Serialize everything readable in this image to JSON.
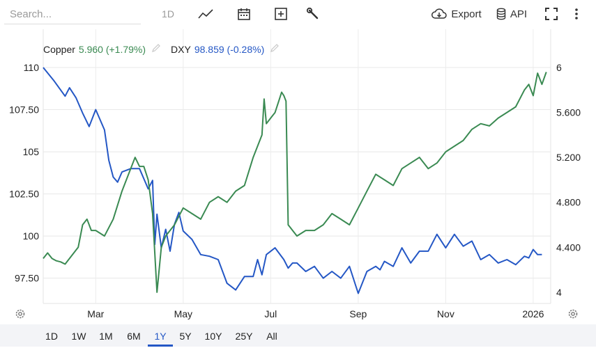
{
  "toolbar": {
    "search_placeholder": "Search...",
    "interval_label": "1D",
    "export_label": "Export",
    "api_label": "API",
    "icons": [
      "line-chart-icon",
      "calendar-icon",
      "plus-box-icon",
      "wrench-icon",
      "cloud-download-icon",
      "database-icon",
      "fullscreen-icon",
      "more-vertical-icon"
    ]
  },
  "legend": {
    "copper_name": "Copper",
    "copper_value": "5.960 (+1.79%)",
    "dxy_name": "DXY",
    "dxy_value": "98.859 (-0.28%)"
  },
  "range_buttons": [
    "1D",
    "1W",
    "1M",
    "6M",
    "1Y",
    "5Y",
    "10Y",
    "25Y",
    "All"
  ],
  "active_range": "1Y",
  "colors": {
    "copper": "#3a8a52",
    "dxy": "#2457c5",
    "active": "#2457c5"
  },
  "chart_data": {
    "type": "line",
    "x_tick_labels": [
      "Mar",
      "May",
      "Jul",
      "Sep",
      "Nov",
      "2026"
    ],
    "x_tick_positions": [
      1.2,
      3.2,
      5.2,
      7.2,
      9.2,
      11.2
    ],
    "xlim": [
      0,
      11.6
    ],
    "grid": true,
    "left_axis": {
      "ticks": [
        "110",
        "107.50",
        "105",
        "102.50",
        "100",
        "97.50"
      ],
      "ylim": [
        96,
        110
      ]
    },
    "right_axis": {
      "ticks": [
        "6",
        "5.600",
        "5.200",
        "4.800",
        "4.400",
        "4"
      ],
      "ylim": [
        3.9,
        6
      ]
    },
    "series": [
      {
        "name": "DXY",
        "axis": "left",
        "x": [
          0,
          0.25,
          0.5,
          0.6,
          0.75,
          0.9,
          1.05,
          1.2,
          1.4,
          1.5,
          1.6,
          1.7,
          1.8,
          2.0,
          2.2,
          2.4,
          2.5,
          2.55,
          2.6,
          2.7,
          2.8,
          2.9,
          3.0,
          3.1,
          3.2,
          3.4,
          3.6,
          3.8,
          4.0,
          4.2,
          4.4,
          4.6,
          4.8,
          4.9,
          5.0,
          5.1,
          5.3,
          5.5,
          5.6,
          5.7,
          5.8,
          6.0,
          6.2,
          6.4,
          6.6,
          6.8,
          7.0,
          7.2,
          7.4,
          7.6,
          7.7,
          7.8,
          8.0,
          8.2,
          8.4,
          8.6,
          8.8,
          9.0,
          9.2,
          9.4,
          9.6,
          9.8,
          10.0,
          10.2,
          10.4,
          10.6,
          10.8,
          11.0,
          11.1,
          11.2,
          11.3,
          11.4
        ],
        "values": [
          110,
          109.2,
          108.3,
          108.8,
          108.2,
          107.3,
          106.5,
          107.5,
          106.3,
          104.5,
          103.5,
          103.2,
          103.8,
          104,
          104,
          102.8,
          103.3,
          99.5,
          101.3,
          99.3,
          100.4,
          99.1,
          100.7,
          101.4,
          100.3,
          99.8,
          98.9,
          98.8,
          98.6,
          97.2,
          96.8,
          97.6,
          97.6,
          98.6,
          97.7,
          98.9,
          99.3,
          98.6,
          98.1,
          98.4,
          98.4,
          97.9,
          98.2,
          97.5,
          97.9,
          97.5,
          98.2,
          96.6,
          97.9,
          98.2,
          98.0,
          98.5,
          98.2,
          99.3,
          98.4,
          99.1,
          99.1,
          100.1,
          99.3,
          100.1,
          99.4,
          99.7,
          98.6,
          98.9,
          98.4,
          98.6,
          98.3,
          98.8,
          98.7,
          99.2,
          98.9,
          98.9
        ]
      },
      {
        "name": "Copper",
        "axis": "right",
        "x": [
          0,
          0.1,
          0.2,
          0.3,
          0.4,
          0.5,
          0.6,
          0.7,
          0.8,
          0.9,
          1.0,
          1.1,
          1.2,
          1.4,
          1.6,
          1.8,
          2.0,
          2.1,
          2.2,
          2.3,
          2.4,
          2.5,
          2.6,
          2.7,
          2.8,
          3.0,
          3.2,
          3.4,
          3.6,
          3.8,
          4.0,
          4.2,
          4.4,
          4.6,
          4.8,
          5.0,
          5.05,
          5.1,
          5.2,
          5.3,
          5.4,
          5.45,
          5.5,
          5.55,
          5.6,
          5.8,
          6.0,
          6.2,
          6.4,
          6.6,
          6.8,
          7.0,
          7.2,
          7.4,
          7.6,
          7.8,
          8.0,
          8.2,
          8.4,
          8.6,
          8.8,
          9.0,
          9.2,
          9.4,
          9.6,
          9.8,
          10.0,
          10.2,
          10.4,
          10.6,
          10.8,
          11.0,
          11.1,
          11.2,
          11.3,
          11.4,
          11.5
        ],
        "values": [
          4.3,
          4.35,
          4.3,
          4.28,
          4.27,
          4.25,
          4.3,
          4.35,
          4.4,
          4.6,
          4.65,
          4.55,
          4.55,
          4.5,
          4.65,
          4.9,
          5.1,
          5.2,
          5.12,
          5.12,
          5.0,
          4.7,
          4.0,
          4.4,
          4.5,
          4.6,
          4.75,
          4.7,
          4.65,
          4.8,
          4.85,
          4.8,
          4.9,
          4.95,
          5.2,
          5.4,
          5.72,
          5.5,
          5.55,
          5.6,
          5.72,
          5.78,
          5.75,
          5.7,
          4.6,
          4.5,
          4.55,
          4.55,
          4.6,
          4.7,
          4.65,
          4.6,
          4.75,
          4.9,
          5.05,
          5.0,
          4.95,
          5.1,
          5.15,
          5.2,
          5.1,
          5.15,
          5.25,
          5.3,
          5.35,
          5.45,
          5.5,
          5.48,
          5.55,
          5.6,
          5.65,
          5.8,
          5.85,
          5.75,
          5.95,
          5.85,
          5.96
        ]
      }
    ]
  }
}
